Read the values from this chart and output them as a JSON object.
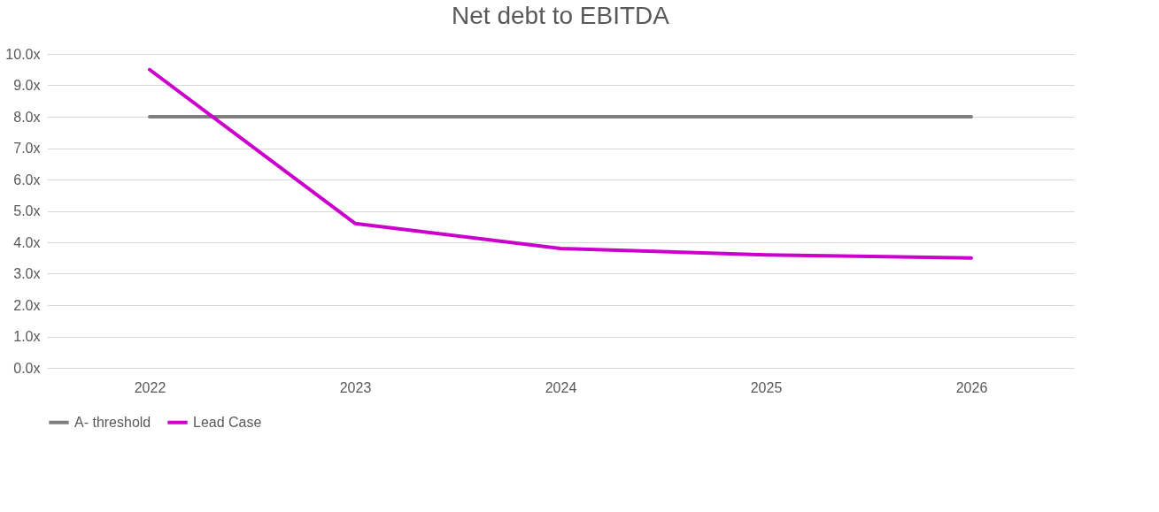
{
  "chart_data": {
    "type": "line",
    "title": "Net debt to EBITDA",
    "categories": [
      "2022",
      "2023",
      "2024",
      "2025",
      "2026"
    ],
    "series": [
      {
        "name": "A- threshold",
        "color": "#7f7f7f",
        "values": [
          8.0,
          8.0,
          8.0,
          8.0,
          8.0
        ]
      },
      {
        "name": "Lead Case",
        "color": "#cc00cc",
        "values": [
          9.5,
          4.6,
          3.8,
          3.6,
          3.5
        ]
      }
    ],
    "ylim": [
      0,
      10
    ],
    "yticks": [
      {
        "value": 0,
        "label": "0.0x"
      },
      {
        "value": 1,
        "label": "1.0x"
      },
      {
        "value": 2,
        "label": "2.0x"
      },
      {
        "value": 3,
        "label": "3.0x"
      },
      {
        "value": 4,
        "label": "4.0x"
      },
      {
        "value": 5,
        "label": "5.0x"
      },
      {
        "value": 6,
        "label": "6.0x"
      },
      {
        "value": 7,
        "label": "7.0x"
      },
      {
        "value": 8,
        "label": "8.0x"
      },
      {
        "value": 9,
        "label": "9.0x"
      },
      {
        "value": 10,
        "label": "10.0x"
      }
    ],
    "grid": "y",
    "legend": "bottom",
    "line_style": "solid"
  }
}
